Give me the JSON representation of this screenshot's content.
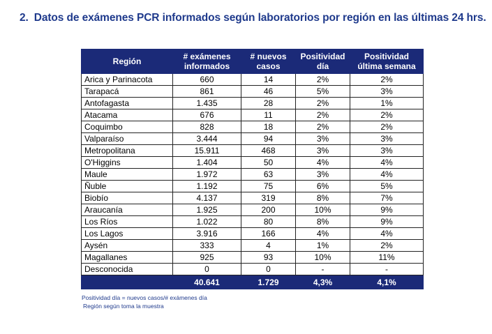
{
  "title": {
    "number": "2.",
    "text": "Datos de exámenes PCR informados según laboratorios por región en las últimas 24 hrs."
  },
  "table": {
    "headers": [
      [
        "Región"
      ],
      [
        "# exámenes",
        "informados"
      ],
      [
        "# nuevos",
        "casos"
      ],
      [
        "Positividad",
        "día"
      ],
      [
        "Positividad",
        "última semana"
      ]
    ],
    "rows": [
      [
        "Arica y Parinacota",
        "660",
        "14",
        "2%",
        "2%"
      ],
      [
        "Tarapacá",
        "861",
        "46",
        "5%",
        "3%"
      ],
      [
        "Antofagasta",
        "1.435",
        "28",
        "2%",
        "1%"
      ],
      [
        "Atacama",
        "676",
        "11",
        "2%",
        "2%"
      ],
      [
        "Coquimbo",
        "828",
        "18",
        "2%",
        "2%"
      ],
      [
        "Valparaíso",
        "3.444",
        "94",
        "3%",
        "3%"
      ],
      [
        "Metropolitana",
        "15.911",
        "468",
        "3%",
        "3%"
      ],
      [
        "O'Higgins",
        "1.404",
        "50",
        "4%",
        "4%"
      ],
      [
        "Maule",
        "1.972",
        "63",
        "3%",
        "4%"
      ],
      [
        "Ñuble",
        "1.192",
        "75",
        "6%",
        "5%"
      ],
      [
        "Biobío",
        "4.137",
        "319",
        "8%",
        "7%"
      ],
      [
        "Araucanía",
        "1.925",
        "200",
        "10%",
        "9%"
      ],
      [
        "Los Ríos",
        "1.022",
        "80",
        "8%",
        "9%"
      ],
      [
        "Los Lagos",
        "3.916",
        "166",
        "4%",
        "4%"
      ],
      [
        "Aysén",
        "333",
        "4",
        "1%",
        "2%"
      ],
      [
        "Magallanes",
        "925",
        "93",
        "10%",
        "11%"
      ],
      [
        "Desconocida",
        "0",
        "0",
        "-",
        "-"
      ]
    ],
    "total": [
      "",
      "40.641",
      "1.729",
      "4,3%",
      "4,1%"
    ]
  },
  "notes": [
    "Positividad día = nuevos casos/# exámenes día",
    "Región según toma la muestra"
  ],
  "colors": {
    "header_bg": "#1b2a78",
    "title": "#1f3a8c"
  }
}
